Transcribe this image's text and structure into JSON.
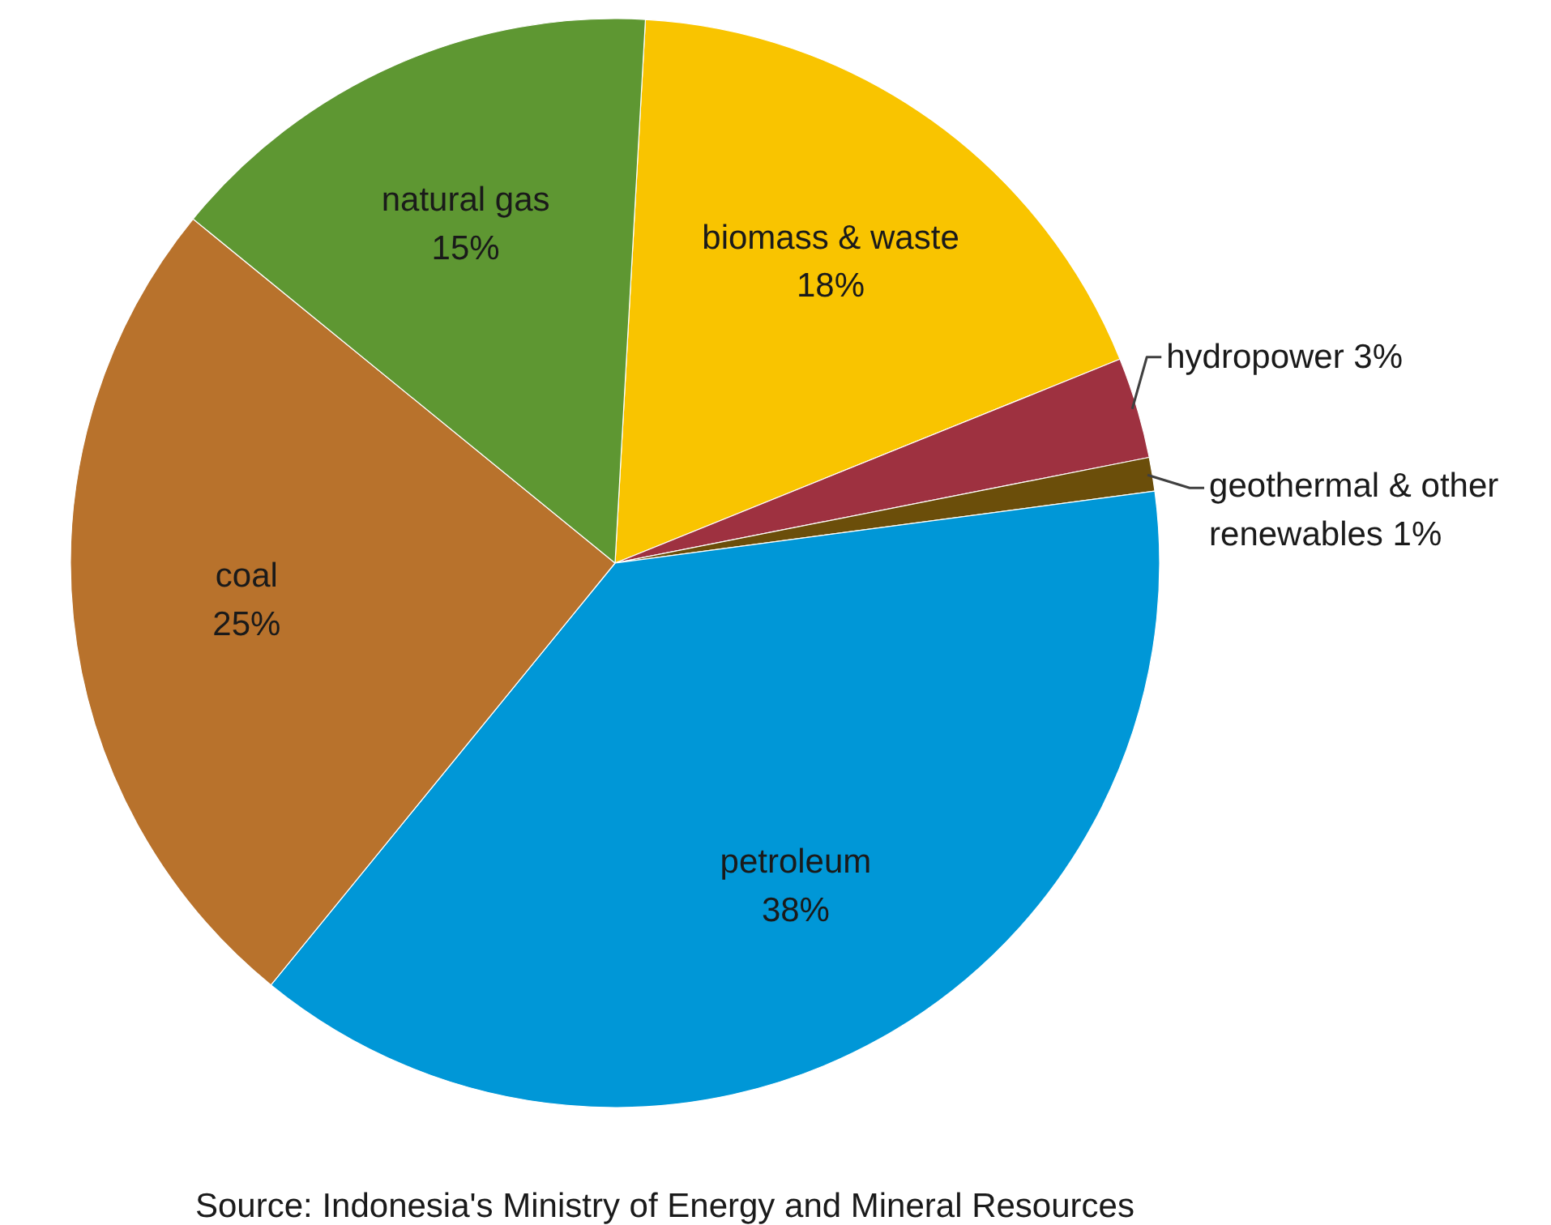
{
  "chart_data": {
    "type": "pie",
    "categories": [
      "biomass & waste",
      "hydropower",
      "geothermal & other renewables",
      "petroleum",
      "coal",
      "natural gas"
    ],
    "values": [
      18,
      3,
      1,
      38,
      25,
      15
    ],
    "colors": [
      "#f9c400",
      "#9e3140",
      "#6b4e0a",
      "#0097d7",
      "#b8722c",
      "#5e9732"
    ],
    "value_labels": [
      "18%",
      "3%",
      "1%",
      "38%",
      "25%",
      "15%"
    ],
    "annotations": [
      "Source: Indonesia's Ministry of Energy and Mineral Resources"
    ]
  }
}
